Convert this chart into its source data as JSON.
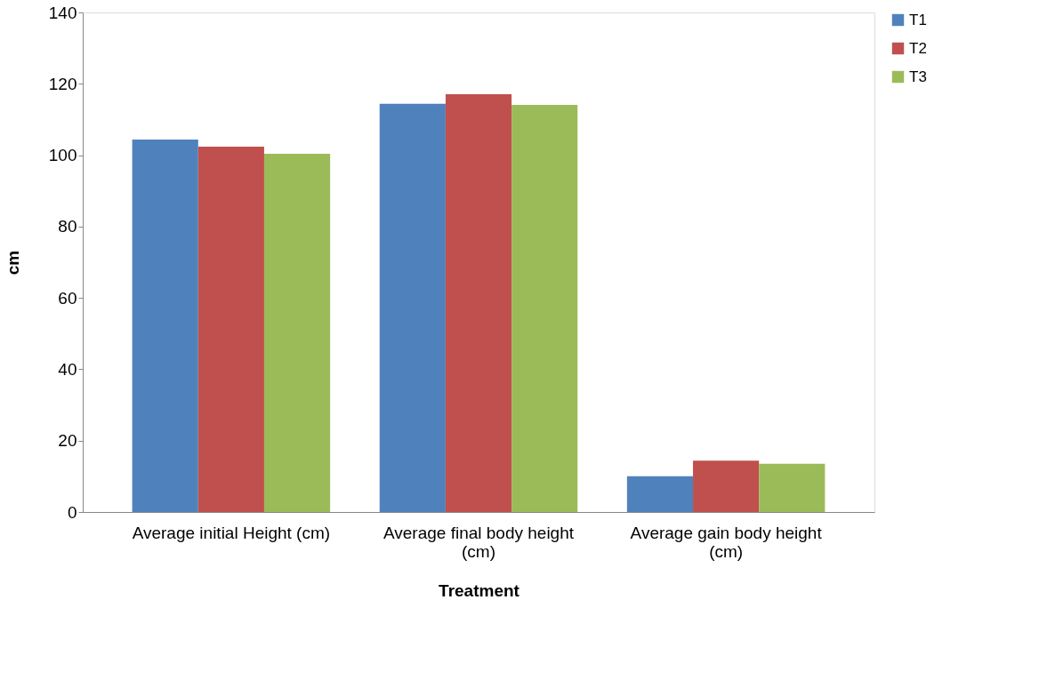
{
  "chart_data": {
    "type": "bar",
    "xlabel": "Treatment",
    "ylabel": "cm",
    "categories": [
      "Average initial Height (cm)",
      "Average final body height (cm)",
      "Average gain body height (cm)"
    ],
    "series": [
      {
        "name": "T1",
        "color": "#4f81bd",
        "values": [
          104.4,
          114.4,
          10.0
        ]
      },
      {
        "name": "T2",
        "color": "#c0504d",
        "values": [
          102.4,
          117.1,
          14.4
        ]
      },
      {
        "name": "T3",
        "color": "#9bbb59",
        "values": [
          100.4,
          114.1,
          13.5
        ]
      }
    ],
    "ylim": [
      0,
      140
    ],
    "yticks": [
      0,
      20,
      40,
      60,
      80,
      100,
      120,
      140
    ],
    "grid": false,
    "legend": "right"
  }
}
